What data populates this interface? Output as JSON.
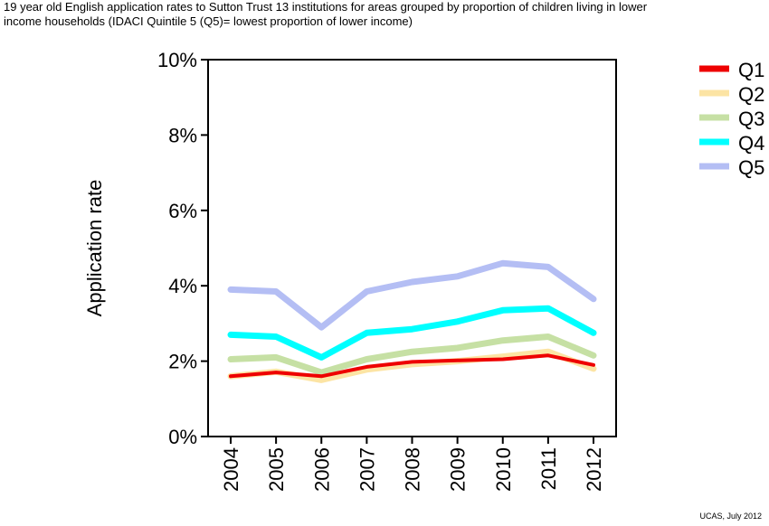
{
  "title_lines": [
    "19 year old English application rates to Sutton Trust 13 institutions for areas grouped by proportion of children living in lower",
    "income households (IDACI Quintile 5 (Q5)= lowest proportion of lower income)"
  ],
  "source": "UCAS, July 2012",
  "chart_data": {
    "type": "line",
    "title": "19 year old English application rates to Sutton Trust 13 institutions for areas grouped by proportion of children living in lower income households (IDACI Quintile 5 (Q5)= lowest proportion of lower income)",
    "xlabel": "",
    "ylabel": "Application rate",
    "x": [
      "2004",
      "2005",
      "2006",
      "2007",
      "2008",
      "2009",
      "2010",
      "2011",
      "2012"
    ],
    "ylim": [
      0,
      0.1
    ],
    "yticks": [
      0,
      0.02,
      0.04,
      0.06,
      0.08,
      0.1
    ],
    "ytick_labels": [
      "0%",
      "2%",
      "4%",
      "6%",
      "8%",
      "10%"
    ],
    "grid": false,
    "legend_position": "top-right, outside plot",
    "series": [
      {
        "name": "Q1",
        "color": "#ee0000",
        "values": [
          0.016,
          0.017,
          0.016,
          0.0185,
          0.0198,
          0.0202,
          0.0205,
          0.0215,
          0.019
        ]
      },
      {
        "name": "Q2",
        "color": "#fce4a4",
        "values": [
          0.016,
          0.0172,
          0.015,
          0.0178,
          0.0192,
          0.02,
          0.0212,
          0.0225,
          0.018
        ]
      },
      {
        "name": "Q3",
        "color": "#c6e0a4",
        "values": [
          0.0205,
          0.021,
          0.017,
          0.0205,
          0.0225,
          0.0235,
          0.0255,
          0.0265,
          0.0215
        ]
      },
      {
        "name": "Q4",
        "color": "#00ffff",
        "values": [
          0.027,
          0.0265,
          0.021,
          0.0275,
          0.0285,
          0.0305,
          0.0335,
          0.034,
          0.0275
        ]
      },
      {
        "name": "Q5",
        "color": "#b4bef4",
        "values": [
          0.039,
          0.0385,
          0.029,
          0.0385,
          0.041,
          0.0425,
          0.046,
          0.045,
          0.0365
        ]
      }
    ]
  }
}
